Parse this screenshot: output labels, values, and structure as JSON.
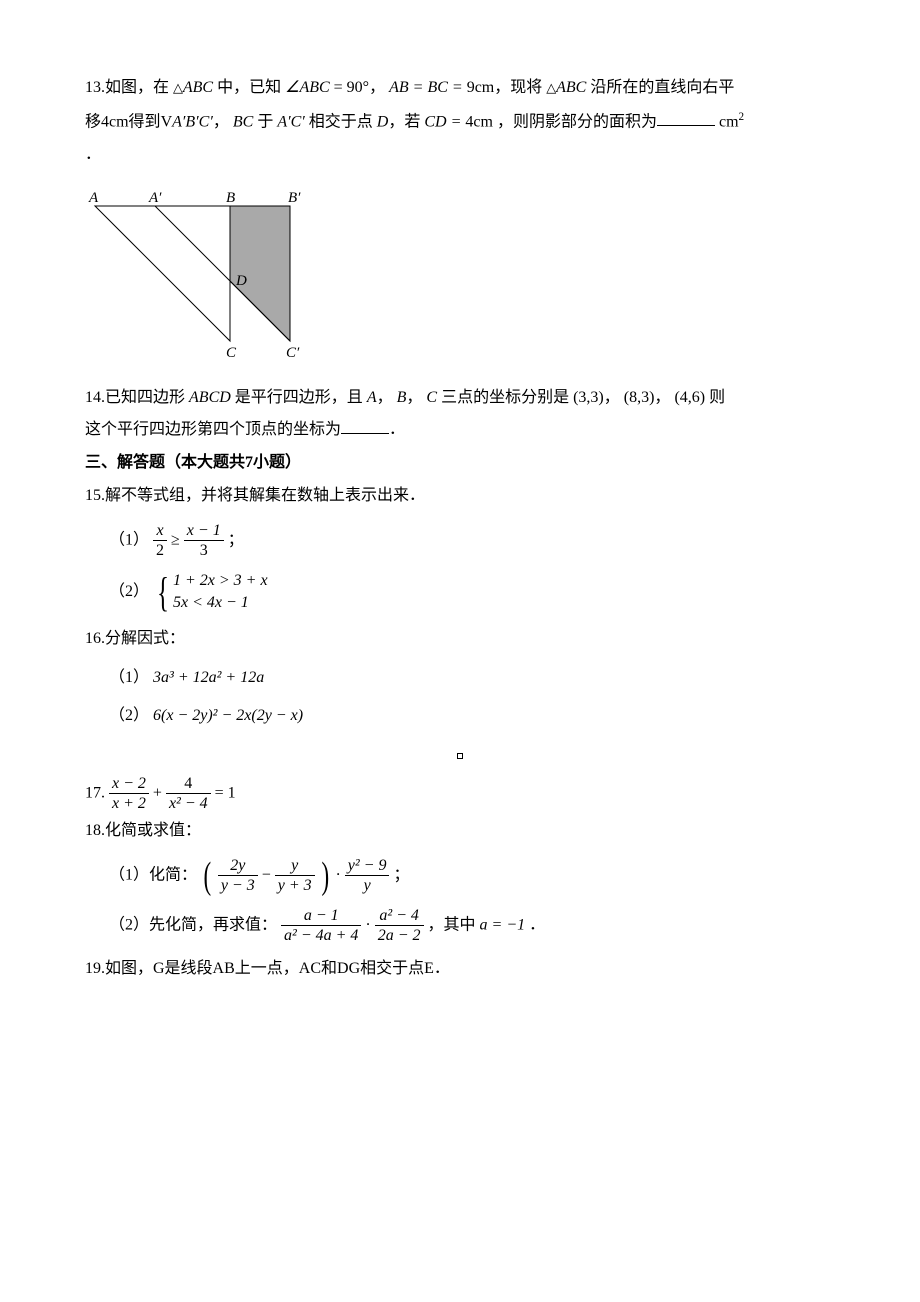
{
  "q13": {
    "prefix": "13.如图，在",
    "tri1": "△",
    "abc1": "ABC",
    "txt_a": "中，已知",
    "angle": "∠ABC",
    "eq90": " = 90°",
    "comma1": "，",
    "abeq": "AB = BC = ",
    "nine": "9cm",
    "comma2": "，现将",
    "tri2": "△",
    "abc2": "ABC",
    "txt_b": "沿所在的直线向右平",
    "line2a": "移4cm得到",
    "v": "V",
    "abcprime": "A′B′C′",
    "comma3": "，",
    "bc": "BC",
    "yu": "于",
    "acprime": "A′C′",
    "txt_c": "相交于点",
    "d": "D",
    "comma4": "，若",
    "cdeq": "CD = ",
    "four": "4cm",
    "txt_d": "，则阴影部分的面积为",
    "unit": "cm",
    "sq": "2",
    "dot": "．"
  },
  "fig13": {
    "labels": {
      "A": "A",
      "Aprime": "A′",
      "B": "B",
      "Bprime": "B′",
      "C": "C",
      "Cprime": "C′",
      "D": "D"
    },
    "stroke": "#000000",
    "fill_shadow": "#a9a9a9",
    "fill_white": "#ffffff",
    "font": "italic 15px Times New Roman"
  },
  "q14": {
    "prefix": "14.已知四边形",
    "abcd": "ABCD",
    "txt_a": "是平行四边形，且",
    "A": "A",
    "c1": "，",
    "B": "B",
    "c2": "，",
    "C": "C",
    "txt_b": "三点的坐标分别是",
    "p1": "(3,3)",
    "c3": "，",
    "p2": "(8,3)",
    "c4": "，",
    "p3": "(4,6)",
    "txt_c": "则",
    "line2": "这个平行四边形第四个顶点的坐标为",
    "end": "．"
  },
  "section3": "三、解答题（本大题共7小题）",
  "q15": {
    "stem": "15.解不等式组，并将其解集在数轴上表示出来．",
    "p1_label": "（1）",
    "p1_lhs_num": "x",
    "p1_lhs_den": "2",
    "p1_op": " ≥ ",
    "p1_rhs_num": "x − 1",
    "p1_rhs_den": "3",
    "p1_end": "；",
    "p2_label": "（2）",
    "p2_eq1": "1 + 2x > 3 + x",
    "p2_eq2": "5x < 4x − 1"
  },
  "q16": {
    "stem": "16.分解因式：",
    "p1_label": "（1）",
    "p1_expr": "3a³ + 12a² + 12a",
    "p2_label": "（2）",
    "p2_expr": "6(x − 2y)² − 2x(2y − x)"
  },
  "q17": {
    "label": "17.",
    "t1_num": "x − 2",
    "t1_den": "x + 2",
    "plus": " + ",
    "t2_num": "4",
    "t2_den": "x² − 4",
    "eq": " = 1"
  },
  "q18": {
    "stem": "18.化简或求值：",
    "p1_label": "（1）化简：",
    "p1_a_num": "2y",
    "p1_a_den": "y − 3",
    "p1_minus": " − ",
    "p1_b_num": "y",
    "p1_b_den": "y + 3",
    "p1_dot": "·",
    "p1_c_num": "y² − 9",
    "p1_c_den": "y",
    "p1_end": "；",
    "p2_label": "（2）先化简，再求值：",
    "p2_a_num": "a − 1",
    "p2_a_den": "a² − 4a + 4",
    "p2_dot": "·",
    "p2_b_num": "a² − 4",
    "p2_b_den": "2a − 2",
    "p2_mid": "，其中",
    "p2_val": "a = −1",
    "p2_end": "．"
  },
  "q19": "19.如图，G是线段AB上一点，AC和DG相交于点E．",
  "blanks": {
    "w_long": "58px",
    "w_short": "48px"
  },
  "page_marker": "▪"
}
